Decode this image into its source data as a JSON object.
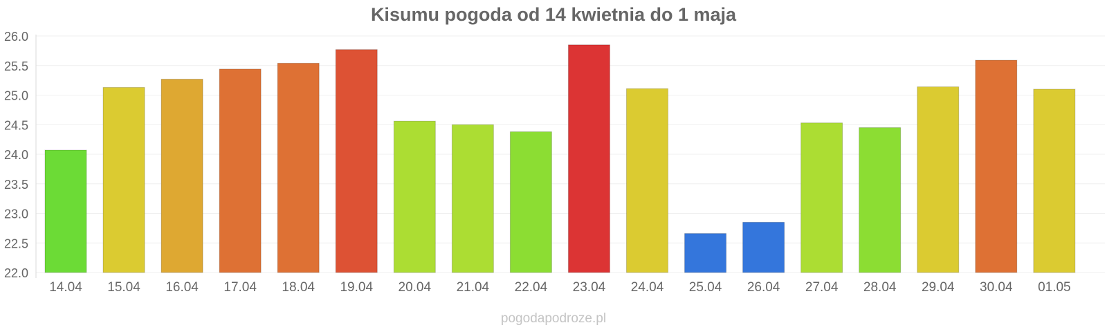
{
  "chart_data": {
    "type": "bar",
    "title": "Kisumu pogoda od 14 kwietnia do 1 maja",
    "xlabel": "",
    "ylabel": "",
    "ylim": [
      22.0,
      26.0
    ],
    "yticks": [
      "22.0",
      "22.5",
      "23.0",
      "23.5",
      "24.0",
      "24.5",
      "25.0",
      "25.5",
      "26.0"
    ],
    "grid": true,
    "categories": [
      "14.04",
      "15.04",
      "16.04",
      "17.04",
      "18.04",
      "19.04",
      "20.04",
      "21.04",
      "22.04",
      "23.04",
      "24.04",
      "25.04",
      "26.04",
      "27.04",
      "28.04",
      "29.04",
      "30.04",
      "01.05"
    ],
    "values": [
      24.07,
      25.13,
      25.27,
      25.44,
      25.54,
      25.77,
      24.56,
      24.5,
      24.38,
      25.85,
      25.11,
      22.66,
      22.85,
      24.53,
      24.45,
      25.14,
      25.59,
      25.1
    ],
    "colors": [
      "#6cdb36",
      "#dbcb31",
      "#dea832",
      "#de7134",
      "#de7134",
      "#dd5234",
      "#acdd33",
      "#acdd33",
      "#8cdd33",
      "#dc3434",
      "#dbcb31",
      "#3476dc",
      "#3476dc",
      "#acdd33",
      "#8cdd33",
      "#dbcb31",
      "#de7134",
      "#dbcb31"
    ]
  },
  "watermark": "pogodapodroze.pl"
}
